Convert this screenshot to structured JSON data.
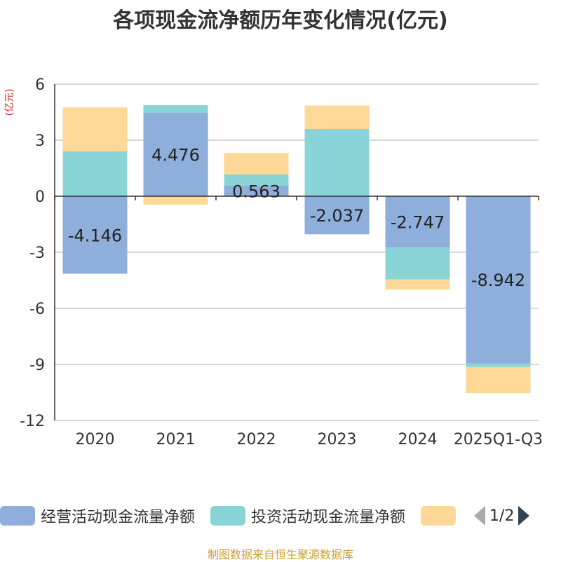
{
  "chart_data": {
    "type": "bar",
    "stacked": true,
    "title": "各项现金流净额历年变化情况(亿元)",
    "ylabel": "(亿元)",
    "ylim": [
      -12,
      6
    ],
    "yticks": [
      6,
      3,
      0,
      -3,
      -6,
      -9,
      -12
    ],
    "categories": [
      "2020",
      "2021",
      "2022",
      "2023",
      "2024",
      "2025Q1-Q3"
    ],
    "series": [
      {
        "name": "经营活动现金流量净额",
        "color": "#8eaedb",
        "values": [
          -4.146,
          4.476,
          0.563,
          -2.037,
          -2.747,
          -8.942
        ]
      },
      {
        "name": "投资活动现金流量净额",
        "color": "#88d4d7",
        "values": [
          2.4,
          0.4,
          0.6,
          3.6,
          -1.7,
          -0.2
        ]
      },
      {
        "name": "",
        "color": "#fdd897",
        "values": [
          2.35,
          -0.45,
          1.15,
          1.25,
          -0.55,
          -1.4
        ]
      }
    ],
    "data_labels": [
      "-4.146",
      "4.476",
      "0.563",
      "-2.037",
      "-2.747",
      "-8.942"
    ]
  },
  "legend": {
    "page_indicator": "1/2"
  },
  "footer": {
    "source": "制图数据来自恒生聚源数据库"
  }
}
